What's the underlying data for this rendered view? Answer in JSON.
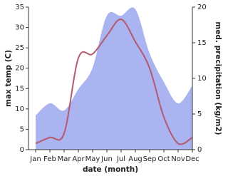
{
  "chart_data": {
    "type": "line",
    "categories": [
      "Jan",
      "Feb",
      "Mar",
      "Apr",
      "May",
      "Jun",
      "Jul",
      "Aug",
      "Sep",
      "Oct",
      "Nov",
      "Dec"
    ],
    "x_label": "date (month)",
    "y_label": "max temp (C)",
    "y2_label": "med. precipitation (kg/m2)",
    "ylim": [
      0,
      35
    ],
    "yticks": [
      0,
      5,
      10,
      15,
      20,
      25,
      30,
      35
    ],
    "y2lim": [
      0,
      20
    ],
    "y2ticks": [
      0,
      5,
      10,
      15,
      20
    ],
    "series": [
      {
        "type": "line",
        "color": "#b45a6e",
        "values": [
          1.5,
          3,
          4,
          22.5,
          23.5,
          28,
          32,
          26.5,
          20,
          8,
          1.5,
          3
        ]
      },
      {
        "type": "area",
        "axis": "y2",
        "color": "#aab4f0",
        "values": [
          4.8,
          6.5,
          5.5,
          8.5,
          11.5,
          18.8,
          18.8,
          19.7,
          13.5,
          9.5,
          6.5,
          9
        ]
      }
    ]
  }
}
